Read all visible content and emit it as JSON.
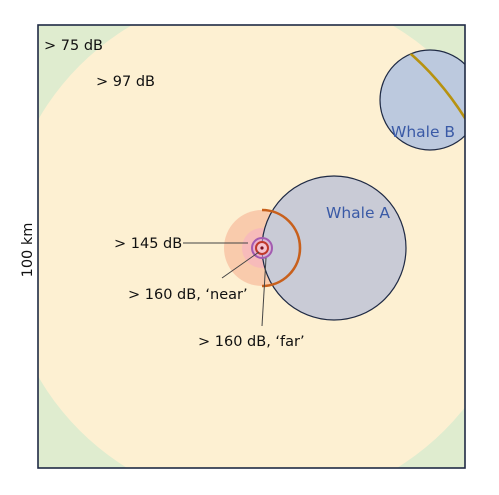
{
  "scale_label": "100 km",
  "zones": {
    "outer": {
      "label": "> 75 dB",
      "color": "#dfeccf"
    },
    "mid": {
      "label": "> 97 dB",
      "color": "#fdf0d2"
    },
    "high": {
      "label": "> 145 dB",
      "color": "#f8c4a6"
    },
    "near": {
      "label": "> 160 dB, ‘near’",
      "color": "#c0392b"
    },
    "far": {
      "label": "> 160 dB, ‘far’",
      "color": "#a35bb0"
    }
  },
  "whales": {
    "a": {
      "label": "Whale A",
      "fill": "#c9cbd6",
      "label_color": "#3a5aa6",
      "arc_color": "#c8601c"
    },
    "b": {
      "label": "Whale B",
      "fill": "#bcc9de",
      "label_color": "#3a5aa6",
      "arc_color": "#b7920f"
    }
  },
  "frame_color": "#1f2a44"
}
